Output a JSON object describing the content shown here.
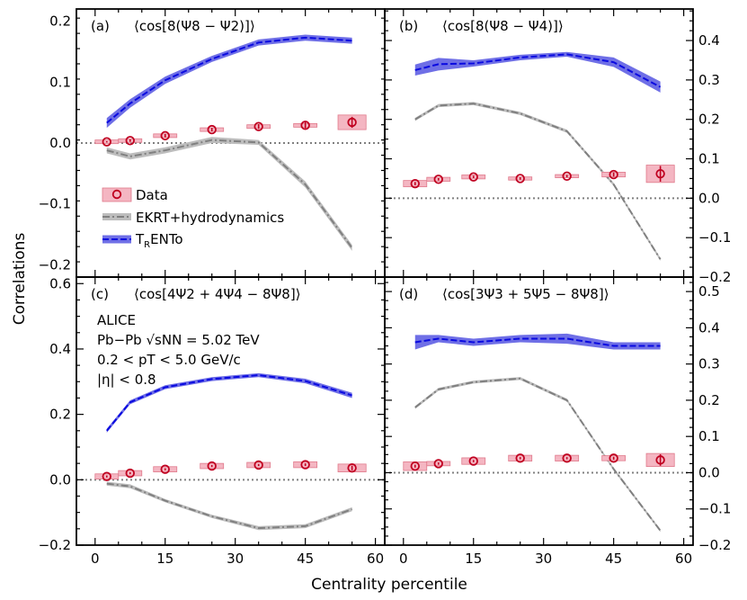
{
  "figure": {
    "ylabel": "Correlations",
    "xlabel": "Centrality percentile",
    "colors": {
      "data_marker": "#c00020",
      "data_box": "#f4b6c2",
      "data_box_edge": "#e07a8c",
      "ekrt": "#808080",
      "ekrt_band": "#bdbdbd",
      "trento": "#0a0ae0",
      "trento_band": "#6f6fe6",
      "zero_line": "#808080"
    }
  },
  "legend": {
    "data": "Data",
    "ekrt": "EKRT+hydrodynamics",
    "trento_main": "T",
    "trento_sub": "R",
    "trento_rest": "ENTo"
  },
  "annotation": {
    "line1": "ALICE",
    "line2": "Pb−Pb √sNN = 5.02 TeV",
    "line3": "0.2 < pT < 5.0 GeV/c",
    "line4": "|η| < 0.8"
  },
  "chart_data": [
    {
      "type": "line",
      "panel": "a",
      "tag": "(a)",
      "title": "⟨cos[8(Ψ8 − Ψ2)]⟩",
      "xlim": [
        -4,
        62
      ],
      "ylim": [
        -0.22,
        0.22
      ],
      "xticks": [
        0,
        15,
        30,
        45,
        60
      ],
      "yticks": [
        -0.2,
        -0.1,
        0.0,
        0.1,
        0.2
      ],
      "ytick_labels": [
        "−0.2",
        "−0.1",
        "0.0",
        "0.1",
        "0.2"
      ],
      "yaxis_side": "left",
      "data": {
        "x": [
          2.5,
          7.5,
          15,
          25,
          35,
          45,
          55
        ],
        "y": [
          0.002,
          0.004,
          0.012,
          0.022,
          0.027,
          0.029,
          0.034
        ],
        "stat_err": [
          0.001,
          0.002,
          0.003,
          0.003,
          0.004,
          0.005,
          0.009
        ],
        "syst_err": [
          0.003,
          0.003,
          0.003,
          0.003,
          0.003,
          0.003,
          0.012
        ]
      },
      "trento": {
        "x": [
          2.5,
          7.5,
          15,
          25,
          35,
          45,
          55
        ],
        "y": [
          0.033,
          0.065,
          0.103,
          0.138,
          0.165,
          0.173,
          0.168
        ],
        "err": [
          0.008,
          0.007,
          0.006,
          0.005,
          0.005,
          0.005,
          0.005
        ]
      },
      "ekrt": {
        "x": [
          2.5,
          7.5,
          15,
          25,
          35,
          45,
          55
        ],
        "y": [
          -0.012,
          -0.022,
          -0.012,
          0.005,
          0.001,
          -0.068,
          -0.172
        ],
        "err": [
          0.005,
          0.005,
          0.005,
          0.005,
          0.004,
          0.005,
          0.005
        ]
      }
    },
    {
      "type": "line",
      "panel": "b",
      "tag": "(b)",
      "title": "⟨cos[8(Ψ8 − Ψ4)]⟩",
      "xlim": [
        -4,
        62
      ],
      "ylim": [
        -0.2,
        0.48
      ],
      "xticks": [
        0,
        15,
        30,
        45,
        60
      ],
      "yticks": [
        -0.2,
        -0.1,
        0.0,
        0.1,
        0.2,
        0.3,
        0.4
      ],
      "ytick_labels": [
        "−0.2",
        "−0.1",
        "0.0",
        "0.1",
        "0.2",
        "0.3",
        "0.4"
      ],
      "yaxis_side": "right",
      "data": {
        "x": [
          2.5,
          7.5,
          15,
          25,
          35,
          45,
          55
        ],
        "y": [
          0.037,
          0.048,
          0.054,
          0.05,
          0.056,
          0.06,
          0.062
        ],
        "stat_err": [
          0.004,
          0.003,
          0.003,
          0.003,
          0.003,
          0.005,
          0.02
        ],
        "syst_err": [
          0.008,
          0.005,
          0.005,
          0.004,
          0.004,
          0.006,
          0.022
        ]
      },
      "trento": {
        "x": [
          2.5,
          7.5,
          15,
          25,
          35,
          45,
          55
        ],
        "y": [
          0.325,
          0.34,
          0.342,
          0.357,
          0.365,
          0.345,
          0.282
        ],
        "err": [
          0.014,
          0.016,
          0.008,
          0.007,
          0.006,
          0.012,
          0.014
        ]
      },
      "ekrt": {
        "x": [
          2.5,
          7.5,
          15,
          25,
          35,
          45,
          55
        ],
        "y": [
          0.2,
          0.235,
          0.24,
          0.215,
          0.17,
          0.035,
          -0.155
        ],
        "err": [
          0.004,
          0.004,
          0.004,
          0.004,
          0.004,
          0.004,
          0.004
        ]
      }
    },
    {
      "type": "line",
      "panel": "c",
      "tag": "(c)",
      "title": "⟨cos[4Ψ2 + 4Ψ4 − 8Ψ8]⟩",
      "xlim": [
        -4,
        62
      ],
      "ylim": [
        -0.2,
        0.62
      ],
      "xticks": [
        0,
        15,
        30,
        45,
        60
      ],
      "yticks": [
        -0.2,
        0.0,
        0.2,
        0.4,
        0.6
      ],
      "ytick_labels": [
        "−0.2",
        "0.0",
        "0.2",
        "0.4",
        "0.6"
      ],
      "yaxis_side": "left",
      "data": {
        "x": [
          2.5,
          7.5,
          15,
          25,
          35,
          45,
          55
        ],
        "y": [
          0.01,
          0.02,
          0.032,
          0.042,
          0.045,
          0.046,
          0.036
        ],
        "stat_err": [
          0.003,
          0.003,
          0.003,
          0.003,
          0.003,
          0.004,
          0.007
        ],
        "syst_err": [
          0.008,
          0.008,
          0.008,
          0.008,
          0.008,
          0.009,
          0.012
        ]
      },
      "trento": {
        "x": [
          2.5,
          7.5,
          15,
          25,
          35,
          45,
          55
        ],
        "y": [
          0.15,
          0.237,
          0.283,
          0.308,
          0.32,
          0.302,
          0.258
        ],
        "err": [
          0.006,
          0.006,
          0.006,
          0.006,
          0.006,
          0.007,
          0.008
        ]
      },
      "ekrt": {
        "x": [
          2.5,
          7.5,
          15,
          25,
          35,
          45,
          55
        ],
        "y": [
          -0.012,
          -0.02,
          -0.064,
          -0.112,
          -0.148,
          -0.142,
          -0.09
        ],
        "err": [
          0.006,
          0.006,
          0.005,
          0.005,
          0.006,
          0.006,
          0.006
        ]
      }
    },
    {
      "type": "line",
      "panel": "d",
      "tag": "(d)",
      "title": "⟨cos[3Ψ3 + 5Ψ5 − 8Ψ8]⟩",
      "xlim": [
        -4,
        62
      ],
      "ylim": [
        -0.2,
        0.54
      ],
      "xticks": [
        0,
        15,
        30,
        45,
        60
      ],
      "yticks": [
        -0.2,
        -0.1,
        0.0,
        0.1,
        0.2,
        0.3,
        0.4,
        0.5
      ],
      "ytick_labels": [
        "−0.2",
        "−0.1",
        "0.0",
        "0.1",
        "0.2",
        "0.3",
        "0.4",
        "0.5"
      ],
      "yaxis_side": "right",
      "data": {
        "x": [
          2.5,
          7.5,
          15,
          25,
          35,
          45,
          55
        ],
        "y": [
          0.018,
          0.025,
          0.032,
          0.04,
          0.04,
          0.04,
          0.035
        ],
        "stat_err": [
          0.004,
          0.003,
          0.003,
          0.003,
          0.003,
          0.004,
          0.016
        ],
        "syst_err": [
          0.012,
          0.006,
          0.009,
          0.008,
          0.008,
          0.007,
          0.018
        ]
      },
      "trento": {
        "x": [
          2.5,
          7.5,
          15,
          25,
          35,
          45,
          55
        ],
        "y": [
          0.36,
          0.37,
          0.36,
          0.37,
          0.37,
          0.35,
          0.35
        ],
        "err": [
          0.02,
          0.01,
          0.01,
          0.01,
          0.014,
          0.01,
          0.01
        ]
      },
      "ekrt": {
        "x": [
          2.5,
          7.5,
          15,
          25,
          35,
          45,
          55
        ],
        "y": [
          0.18,
          0.23,
          0.25,
          0.26,
          0.2,
          0.01,
          -0.16
        ],
        "err": [
          0.004,
          0.004,
          0.004,
          0.004,
          0.004,
          0.004,
          0.004
        ]
      }
    }
  ]
}
